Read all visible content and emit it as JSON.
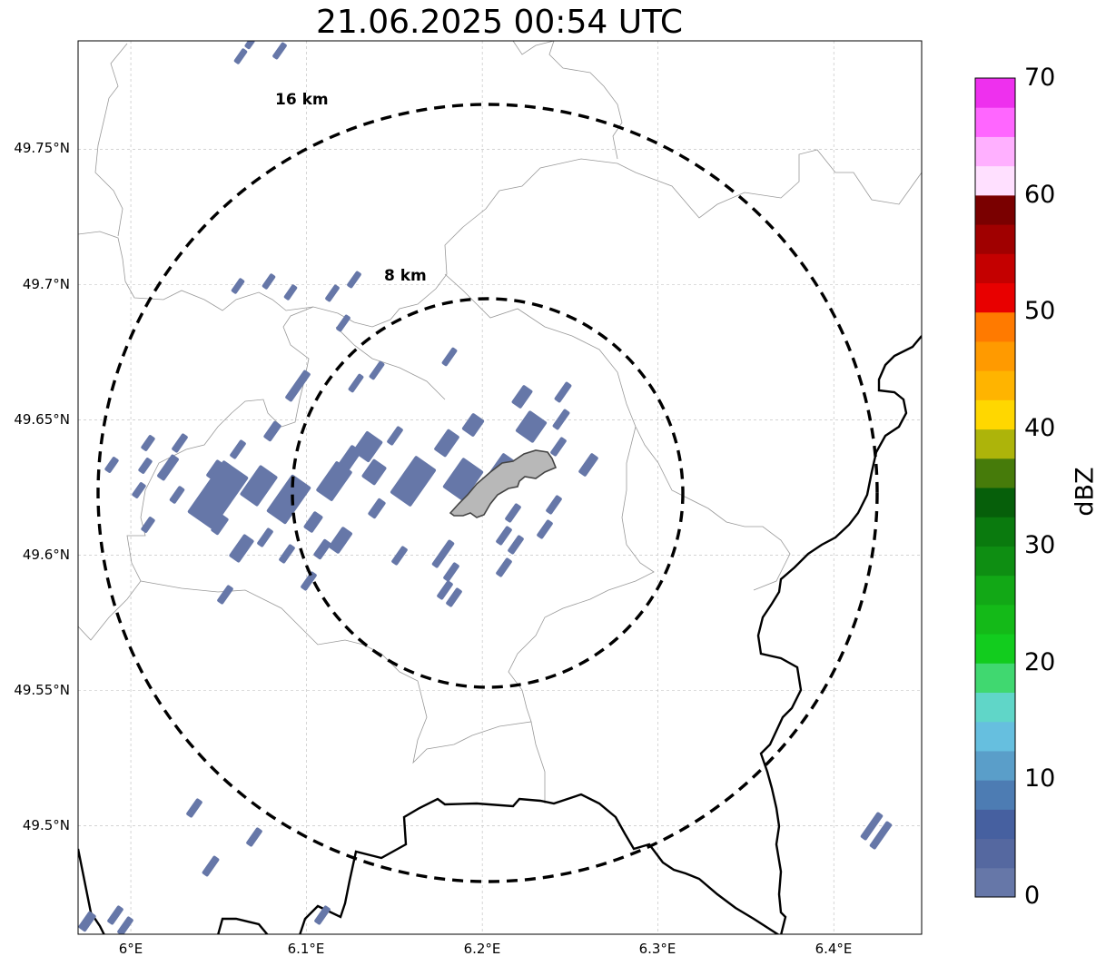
{
  "title": "21.06.2025 00:54 UTC",
  "map": {
    "lon_range": [
      5.97,
      6.45
    ],
    "lat_range": [
      49.46,
      49.79
    ],
    "grid": true,
    "x_ticks": [
      "6°E",
      "6.1°E",
      "6.2°E",
      "6.3°E",
      "6.4°E"
    ],
    "x_tick_values": [
      6.0,
      6.1,
      6.2,
      6.3,
      6.4
    ],
    "y_ticks": [
      "49.75°N",
      "49.7°N",
      "49.65°N",
      "49.6°N",
      "49.55°N",
      "49.5°N"
    ],
    "y_tick_values": [
      49.75,
      49.7,
      49.65,
      49.6,
      49.55,
      49.5
    ],
    "range_rings": [
      {
        "label": "8 km",
        "radius_km": 8
      },
      {
        "label": "16 km",
        "radius_km": 16
      }
    ],
    "radar_center": {
      "lon": 6.2,
      "lat": 49.623
    },
    "echo_color": "#6677a8",
    "highlight_polygon_color": "#b8b8b8"
  },
  "colorbar": {
    "label": "dBZ",
    "min": 0,
    "max": 70,
    "ticks": [
      "0",
      "10",
      "20",
      "30",
      "40",
      "50",
      "60",
      "70"
    ],
    "colors": [
      "#6677a8",
      "#5568a0",
      "#4660a0",
      "#4d7cb3",
      "#5a9ec9",
      "#66bfdf",
      "#60d6c8",
      "#40d870",
      "#12cc1e",
      "#14ba18",
      "#12a816",
      "#0e8e12",
      "#0a7a0e",
      "#065f0a",
      "#467b0a",
      "#adb40a",
      "#ffd700",
      "#ffb400",
      "#ff9a00",
      "#ff7a00",
      "#e80000",
      "#c40000",
      "#a00000",
      "#7a0000",
      "#ffe0ff",
      "#ffb0ff",
      "#ff66ff",
      "#ee30ee"
    ]
  }
}
